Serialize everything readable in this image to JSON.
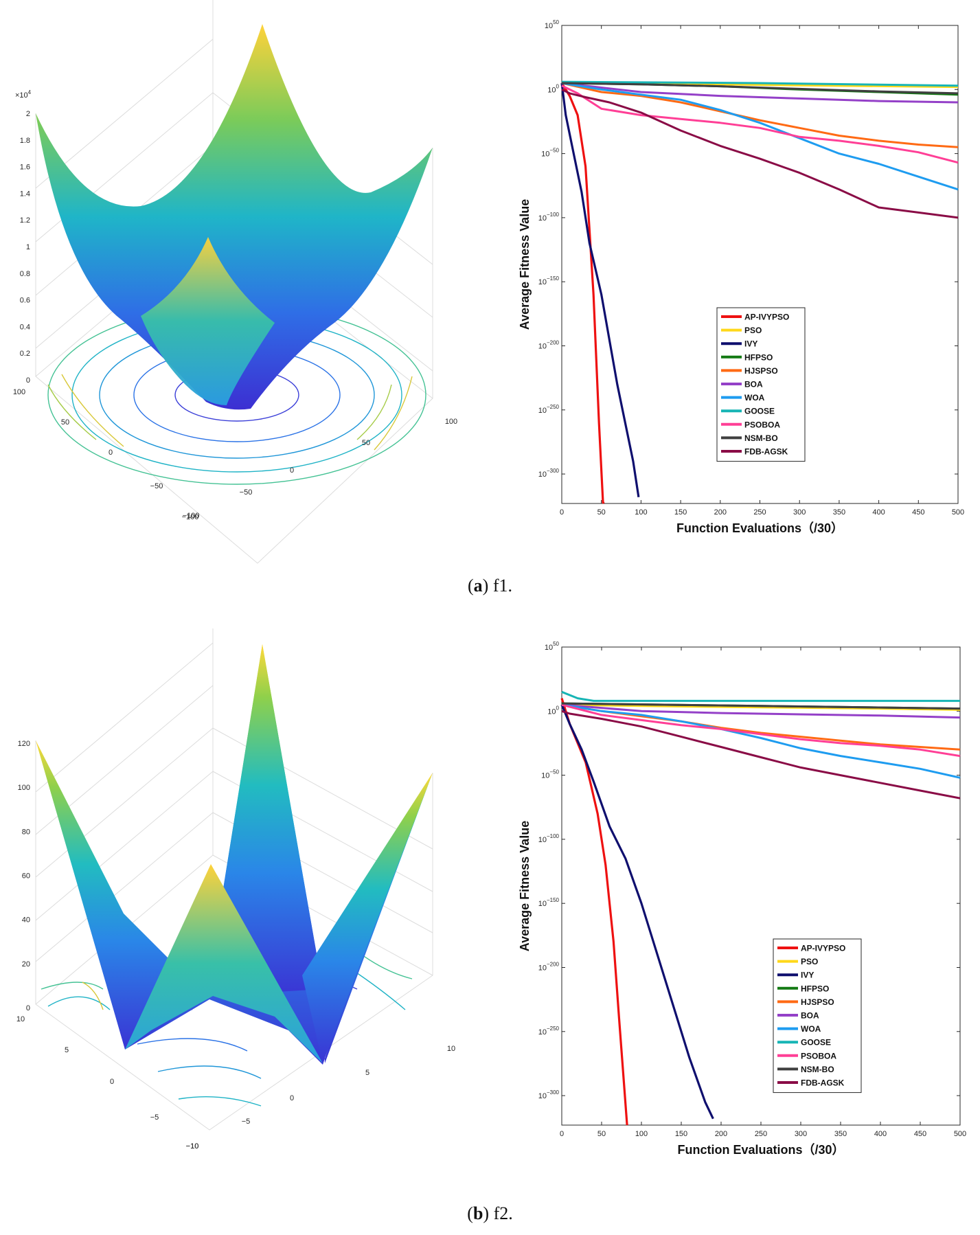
{
  "panels": [
    {
      "caption_letter": "a",
      "caption_text": ") f1.",
      "surface_z_ticks": [
        "0",
        "0.2",
        "0.4",
        "0.6",
        "0.8",
        "1",
        "1.2",
        "1.4",
        "1.6",
        "1.8",
        "2"
      ],
      "surface_z_multiplier": "×10",
      "surface_z_multiplier_exp": "4",
      "surface_x_ticks": [
        "−100",
        "−50",
        "0",
        "50",
        "100"
      ],
      "surface_y_ticks": [
        "−100",
        "−50",
        "0",
        "50",
        "100"
      ]
    },
    {
      "caption_letter": "b",
      "caption_text": ") f2.",
      "surface_z_ticks": [
        "0",
        "20",
        "40",
        "60",
        "80",
        "100",
        "120"
      ],
      "surface_z_multiplier": "",
      "surface_z_multiplier_exp": "",
      "surface_x_ticks": [
        "−10",
        "−5",
        "0",
        "5",
        "10"
      ],
      "surface_y_ticks": [
        "−10",
        "−5",
        "0",
        "5",
        "10"
      ]
    }
  ],
  "colors": {
    "AP-IVYPSO": "#ee1111",
    "PSO": "#ffd81a",
    "IVY": "#0f0f6e",
    "HFPSO": "#137a13",
    "HJSPSO": "#ff6a14",
    "BOA": "#9440c8",
    "WOA": "#1e9cf0",
    "GOOSE": "#17b5b5",
    "PSOBOA": "#ff3f96",
    "NSM-BO": "#3f3f3f",
    "FDB-AGSK": "#8a0c46"
  },
  "chart_data": [
    {
      "type": "line",
      "xlabel": "Function Evaluations（/30）",
      "ylabel": "Average Fitness Value",
      "xlim": [
        0,
        500
      ],
      "ylim": [
        -323,
        50
      ],
      "yscale": "log",
      "x_ticks": [
        0,
        50,
        100,
        150,
        200,
        250,
        300,
        350,
        400,
        450,
        500
      ],
      "y_ticks_exp": [
        50,
        0,
        -50,
        -100,
        -150,
        -200,
        -250,
        -300
      ],
      "legend_position": "center",
      "series": [
        {
          "name": "AP-IVYPSO",
          "log10_y": [
            [
              0,
              5
            ],
            [
              10,
              -5
            ],
            [
              20,
              -20
            ],
            [
              30,
              -60
            ],
            [
              40,
              -160
            ],
            [
              47,
              -260
            ],
            [
              52,
              -322
            ],
            [
              53,
              -323
            ]
          ]
        },
        {
          "name": "PSO",
          "log10_y": [
            [
              0,
              5
            ],
            [
              100,
              4.5
            ],
            [
              200,
              4
            ],
            [
              300,
              3.2
            ],
            [
              400,
              2.6
            ],
            [
              500,
              2
            ]
          ]
        },
        {
          "name": "IVY",
          "log10_y": [
            [
              0,
              5
            ],
            [
              5,
              -20
            ],
            [
              15,
              -50
            ],
            [
              25,
              -80
            ],
            [
              35,
              -120
            ],
            [
              50,
              -160
            ],
            [
              70,
              -230
            ],
            [
              90,
              -290
            ],
            [
              97,
              -318
            ]
          ]
        },
        {
          "name": "HFPSO",
          "log10_y": [
            [
              0,
              5
            ],
            [
              100,
              4
            ],
            [
              200,
              2.5
            ],
            [
              300,
              0
            ],
            [
              400,
              -2
            ],
            [
              500,
              -4
            ]
          ]
        },
        {
          "name": "HJSPSO",
          "log10_y": [
            [
              0,
              5
            ],
            [
              50,
              -2
            ],
            [
              100,
              -5
            ],
            [
              150,
              -10
            ],
            [
              200,
              -17
            ],
            [
              250,
              -24
            ],
            [
              300,
              -30
            ],
            [
              350,
              -36
            ],
            [
              400,
              -40
            ],
            [
              450,
              -43
            ],
            [
              500,
              -45
            ]
          ]
        },
        {
          "name": "BOA",
          "log10_y": [
            [
              0,
              5
            ],
            [
              100,
              -2
            ],
            [
              200,
              -5
            ],
            [
              300,
              -7
            ],
            [
              400,
              -9
            ],
            [
              500,
              -10
            ]
          ]
        },
        {
          "name": "WOA",
          "log10_y": [
            [
              0,
              5
            ],
            [
              50,
              0
            ],
            [
              100,
              -4
            ],
            [
              150,
              -8
            ],
            [
              200,
              -16
            ],
            [
              250,
              -26
            ],
            [
              300,
              -38
            ],
            [
              350,
              -50
            ],
            [
              400,
              -58
            ],
            [
              450,
              -68
            ],
            [
              500,
              -78
            ]
          ]
        },
        {
          "name": "GOOSE",
          "log10_y": [
            [
              0,
              6
            ],
            [
              250,
              5
            ],
            [
              500,
              3
            ]
          ]
        },
        {
          "name": "PSOBOA",
          "log10_y": [
            [
              0,
              3
            ],
            [
              20,
              -3
            ],
            [
              50,
              -15
            ],
            [
              100,
              -20
            ],
            [
              150,
              -23
            ],
            [
              200,
              -26
            ],
            [
              250,
              -30
            ],
            [
              300,
              -37
            ],
            [
              350,
              -40
            ],
            [
              400,
              -44
            ],
            [
              450,
              -49
            ],
            [
              500,
              -57
            ]
          ]
        },
        {
          "name": "NSM-BO",
          "log10_y": [
            [
              0,
              5
            ],
            [
              100,
              4
            ],
            [
              200,
              2.5
            ],
            [
              300,
              0.5
            ],
            [
              400,
              -1.5
            ],
            [
              500,
              -3
            ]
          ]
        },
        {
          "name": "FDB-AGSK",
          "log10_y": [
            [
              0,
              0
            ],
            [
              10,
              -3
            ],
            [
              30,
              -6
            ],
            [
              60,
              -10
            ],
            [
              100,
              -18
            ],
            [
              150,
              -32
            ],
            [
              200,
              -44
            ],
            [
              250,
              -54
            ],
            [
              300,
              -65
            ],
            [
              350,
              -78
            ],
            [
              400,
              -92
            ],
            [
              450,
              -96
            ],
            [
              500,
              -100
            ]
          ]
        }
      ]
    },
    {
      "type": "line",
      "xlabel": "Function Evaluations（/30）",
      "ylabel": "Average Fitness Value",
      "xlim": [
        0,
        500
      ],
      "ylim": [
        -323,
        50
      ],
      "yscale": "log",
      "x_ticks": [
        0,
        50,
        100,
        150,
        200,
        250,
        300,
        350,
        400,
        450,
        500
      ],
      "y_ticks_exp": [
        50,
        0,
        -50,
        -100,
        -150,
        -200,
        -250,
        -300
      ],
      "legend_position": "right",
      "series": [
        {
          "name": "AP-IVYPSO",
          "log10_y": [
            [
              0,
              10
            ],
            [
              10,
              -10
            ],
            [
              20,
              -25
            ],
            [
              30,
              -40
            ],
            [
              45,
              -80
            ],
            [
              55,
              -120
            ],
            [
              65,
              -180
            ],
            [
              72,
              -240
            ],
            [
              78,
              -290
            ],
            [
              82,
              -323
            ]
          ]
        },
        {
          "name": "PSO",
          "log10_y": [
            [
              0,
              5
            ],
            [
              100,
              4
            ],
            [
              250,
              3
            ],
            [
              400,
              2
            ],
            [
              500,
              1
            ]
          ]
        },
        {
          "name": "IVY",
          "log10_y": [
            [
              0,
              5
            ],
            [
              10,
              -10
            ],
            [
              25,
              -30
            ],
            [
              40,
              -55
            ],
            [
              60,
              -90
            ],
            [
              80,
              -115
            ],
            [
              100,
              -150
            ],
            [
              130,
              -210
            ],
            [
              160,
              -270
            ],
            [
              180,
              -305
            ],
            [
              190,
              -318
            ]
          ]
        },
        {
          "name": "HFPSO",
          "log10_y": [
            [
              0,
              6
            ],
            [
              250,
              4
            ],
            [
              500,
              2
            ]
          ]
        },
        {
          "name": "HJSPSO",
          "log10_y": [
            [
              0,
              5
            ],
            [
              50,
              0
            ],
            [
              100,
              -4
            ],
            [
              150,
              -8
            ],
            [
              200,
              -13
            ],
            [
              250,
              -17
            ],
            [
              300,
              -20
            ],
            [
              350,
              -23
            ],
            [
              400,
              -26
            ],
            [
              450,
              -28
            ],
            [
              500,
              -30
            ]
          ]
        },
        {
          "name": "BOA",
          "log10_y": [
            [
              0,
              5
            ],
            [
              100,
              0
            ],
            [
              200,
              -1.5
            ],
            [
              300,
              -2.5
            ],
            [
              400,
              -3.5
            ],
            [
              500,
              -5
            ]
          ]
        },
        {
          "name": "WOA",
          "log10_y": [
            [
              0,
              5
            ],
            [
              50,
              0
            ],
            [
              100,
              -3
            ],
            [
              150,
              -8
            ],
            [
              200,
              -14
            ],
            [
              250,
              -21
            ],
            [
              300,
              -29
            ],
            [
              350,
              -35
            ],
            [
              400,
              -40
            ],
            [
              450,
              -45
            ],
            [
              500,
              -52
            ]
          ]
        },
        {
          "name": "GOOSE",
          "log10_y": [
            [
              0,
              15
            ],
            [
              20,
              10
            ],
            [
              40,
              8
            ],
            [
              200,
              8
            ],
            [
              350,
              8
            ],
            [
              500,
              8
            ]
          ]
        },
        {
          "name": "PSOBOA",
          "log10_y": [
            [
              0,
              5
            ],
            [
              50,
              -3
            ],
            [
              100,
              -7
            ],
            [
              150,
              -11
            ],
            [
              200,
              -14
            ],
            [
              250,
              -18
            ],
            [
              300,
              -22
            ],
            [
              350,
              -25
            ],
            [
              400,
              -27
            ],
            [
              450,
              -30
            ],
            [
              500,
              -35
            ]
          ]
        },
        {
          "name": "NSM-BO",
          "log10_y": [
            [
              0,
              6
            ],
            [
              250,
              4
            ],
            [
              500,
              2
            ]
          ]
        },
        {
          "name": "FDB-AGSK",
          "log10_y": [
            [
              0,
              0
            ],
            [
              10,
              -2
            ],
            [
              50,
              -6
            ],
            [
              100,
              -12
            ],
            [
              150,
              -20
            ],
            [
              200,
              -28
            ],
            [
              250,
              -36
            ],
            [
              300,
              -44
            ],
            [
              350,
              -50
            ],
            [
              400,
              -56
            ],
            [
              450,
              -62
            ],
            [
              500,
              -68
            ]
          ]
        }
      ]
    }
  ]
}
